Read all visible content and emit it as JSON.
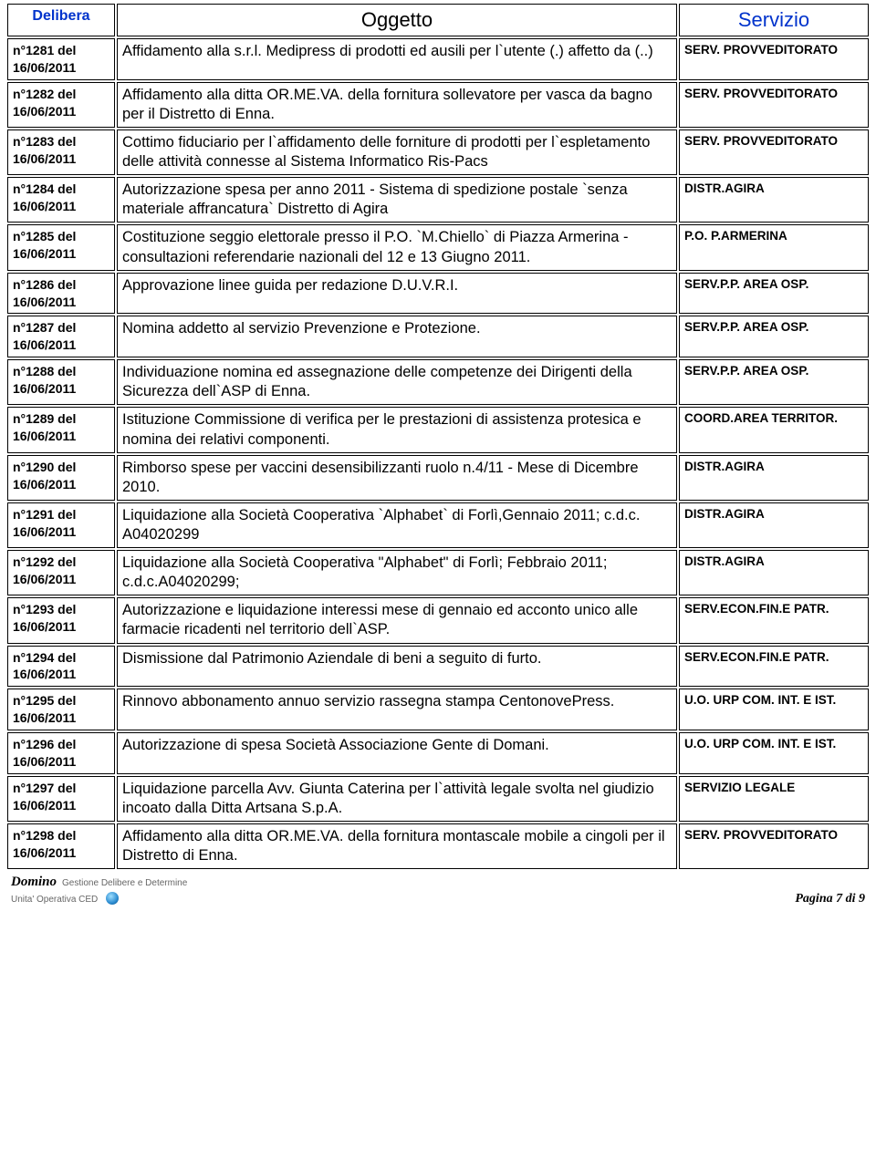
{
  "headers": {
    "delibera": "Delibera",
    "oggetto": "Oggetto",
    "servizio": "Servizio"
  },
  "rows": [
    {
      "num": "n°1281 del",
      "date": "16/06/2011",
      "oggetto": "Affidamento alla s.r.l. Medipress di prodotti ed ausili per l`utente (.) affetto da (..)",
      "servizio": "SERV. PROVVEDITORATO"
    },
    {
      "num": "n°1282 del",
      "date": "16/06/2011",
      "oggetto": "Affidamento alla ditta OR.ME.VA. della fornitura sollevatore per vasca da bagno per il Distretto di Enna.",
      "servizio": "SERV. PROVVEDITORATO"
    },
    {
      "num": "n°1283 del",
      "date": "16/06/2011",
      "oggetto": "Cottimo fiduciario per l`affidamento delle forniture di prodotti per l`espletamento delle attività connesse al Sistema Informatico Ris-Pacs",
      "servizio": "SERV. PROVVEDITORATO"
    },
    {
      "num": "n°1284 del",
      "date": "16/06/2011",
      "oggetto": "Autorizzazione spesa per anno 2011 - Sistema di spedizione postale `senza materiale affrancatura` Distretto di Agira",
      "servizio": "DISTR.AGIRA"
    },
    {
      "num": "n°1285 del",
      "date": "16/06/2011",
      "oggetto": "Costituzione seggio elettorale presso il P.O. `M.Chiello` di Piazza Armerina - consultazioni referendarie nazionali del 12 e 13 Giugno 2011.",
      "servizio": "P.O. P.ARMERINA"
    },
    {
      "num": "n°1286 del",
      "date": "16/06/2011",
      "oggetto": "Approvazione linee guida per  redazione D.U.V.R.I.",
      "servizio": "SERV.P.P. AREA OSP."
    },
    {
      "num": "n°1287 del",
      "date": "16/06/2011",
      "oggetto": "Nomina addetto al servizio Prevenzione e Protezione.",
      "servizio": "SERV.P.P. AREA OSP."
    },
    {
      "num": "n°1288 del",
      "date": "16/06/2011",
      "oggetto": "Individuazione nomina ed assegnazione delle competenze dei Dirigenti della Sicurezza dell`ASP di Enna.",
      "servizio": "SERV.P.P. AREA OSP."
    },
    {
      "num": "n°1289 del",
      "date": "16/06/2011",
      "oggetto": "Istituzione Commissione di verifica per le prestazioni di assistenza protesica e nomina dei relativi componenti.",
      "servizio": "COORD.AREA TERRITOR."
    },
    {
      "num": "n°1290 del",
      "date": "16/06/2011",
      "oggetto": "Rimborso spese per vaccini desensibilizzanti ruolo n.4/11 - Mese di Dicembre 2010.",
      "servizio": "DISTR.AGIRA"
    },
    {
      "num": "n°1291 del",
      "date": "16/06/2011",
      "oggetto": "Liquidazione alla Società Cooperativa `Alphabet` di Forlì,Gennaio 2011; c.d.c. A04020299",
      "servizio": "DISTR.AGIRA"
    },
    {
      "num": "n°1292 del",
      "date": "16/06/2011",
      "oggetto": "Liquidazione alla Società Cooperativa \"Alphabet\" di Forlì; Febbraio 2011; c.d.c.A04020299;",
      "servizio": "DISTR.AGIRA"
    },
    {
      "num": "n°1293 del",
      "date": "16/06/2011",
      "oggetto": "Autorizzazione e liquidazione interessi mese di gennaio ed acconto unico alle farmacie ricadenti nel territorio dell`ASP.",
      "servizio": "SERV.ECON.FIN.E PATR."
    },
    {
      "num": "n°1294 del",
      "date": "16/06/2011",
      "oggetto": "Dismissione dal Patrimonio Aziendale di beni a seguito di furto.",
      "servizio": "SERV.ECON.FIN.E PATR."
    },
    {
      "num": "n°1295 del",
      "date": "16/06/2011",
      "oggetto": "Rinnovo abbonamento annuo servizio rassegna stampa CentonovePress.",
      "servizio": "U.O. URP COM. INT. E IST."
    },
    {
      "num": "n°1296 del",
      "date": "16/06/2011",
      "oggetto": "Autorizzazione di spesa Società Associazione Gente di Domani.",
      "servizio": "U.O. URP COM. INT. E IST."
    },
    {
      "num": "n°1297 del",
      "date": "16/06/2011",
      "oggetto": "Liquidazione parcella Avv. Giunta Caterina per l`attività legale svolta nel giudizio incoato dalla Ditta Artsana S.p.A.",
      "servizio": "SERVIZIO LEGALE"
    },
    {
      "num": "n°1298 del",
      "date": "16/06/2011",
      "oggetto": "Affidamento alla ditta OR.ME.VA. della fornitura montascale mobile a cingoli per il Distretto di Enna.",
      "servizio": "SERV. PROVVEDITORATO"
    }
  ],
  "footer": {
    "domino": "Domino",
    "sub1": "Gestione Delibere e Determine",
    "sub2": "Unita' Operativa CED",
    "page": "Pagina 7 di 9"
  },
  "colors": {
    "header_blue": "#0033cc",
    "text": "#000000",
    "background": "#ffffff",
    "footer_gray": "#666666"
  }
}
